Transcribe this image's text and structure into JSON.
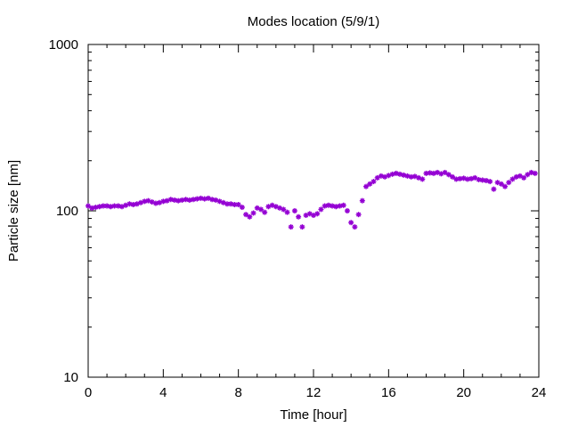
{
  "chart_data": {
    "type": "scatter",
    "title": "Modes location (5/9/1)",
    "xlabel": "Time [hour]",
    "ylabel": "Particle size [nm]",
    "xlim": [
      0,
      24
    ],
    "ylim": [
      10,
      1000
    ],
    "yscale": "log",
    "xticks": [
      0,
      4,
      8,
      12,
      16,
      20,
      24
    ],
    "yticks": [
      10,
      100,
      1000
    ],
    "ytick_labels": [
      "10",
      "100",
      "1000"
    ],
    "grid": false,
    "marker": "asterisk",
    "color": "#9400d3",
    "series": [
      {
        "x": [
          0.0,
          0.2,
          0.4,
          0.6,
          0.8,
          1.0,
          1.2,
          1.4,
          1.6,
          1.8,
          2.0,
          2.2,
          2.4,
          2.6,
          2.8,
          3.0,
          3.2,
          3.4,
          3.6,
          3.8,
          4.0,
          4.2,
          4.4,
          4.6,
          4.8,
          5.0,
          5.2,
          5.4,
          5.6,
          5.8,
          6.0,
          6.2,
          6.4,
          6.6,
          6.8,
          7.0,
          7.2,
          7.4,
          7.6,
          7.8,
          8.0,
          8.2,
          8.4,
          8.6,
          8.8,
          9.0,
          9.2,
          9.4,
          9.6,
          9.8,
          10.0,
          10.2,
          10.4,
          10.6,
          10.8,
          11.0,
          11.2,
          11.4,
          11.6,
          11.8,
          12.0,
          12.2,
          12.4,
          12.6,
          12.8,
          13.0,
          13.2,
          13.4,
          13.6,
          13.8,
          14.0,
          14.2,
          14.4,
          14.6,
          14.8,
          15.0,
          15.2,
          15.4,
          15.6,
          15.8,
          16.0,
          16.2,
          16.4,
          16.6,
          16.8,
          17.0,
          17.2,
          17.4,
          17.6,
          17.8,
          18.0,
          18.2,
          18.4,
          18.6,
          18.8,
          19.0,
          19.2,
          19.4,
          19.6,
          19.8,
          20.0,
          20.2,
          20.4,
          20.6,
          20.8,
          21.0,
          21.2,
          21.4,
          21.6,
          21.8,
          22.0,
          22.2,
          22.4,
          22.6,
          22.8,
          23.0,
          23.2,
          23.4,
          23.6,
          23.8
        ],
        "y": [
          107,
          104,
          105,
          106,
          107,
          107,
          106,
          107,
          107,
          106,
          108,
          110,
          109,
          110,
          112,
          114,
          115,
          113,
          111,
          112,
          114,
          115,
          117,
          116,
          115,
          116,
          117,
          116,
          117,
          118,
          119,
          118,
          119,
          117,
          116,
          114,
          112,
          110,
          110,
          109,
          109,
          105,
          95,
          92,
          97,
          104,
          102,
          98,
          106,
          108,
          106,
          104,
          102,
          98,
          80,
          100,
          92,
          80,
          94,
          96,
          94,
          96,
          102,
          107,
          108,
          107,
          106,
          107,
          108,
          100,
          85,
          80,
          95,
          115,
          140,
          145,
          150,
          158,
          162,
          160,
          163,
          166,
          168,
          166,
          164,
          162,
          160,
          161,
          158,
          155,
          168,
          169,
          168,
          170,
          167,
          170,
          165,
          160,
          155,
          156,
          157,
          155,
          156,
          158,
          154,
          153,
          152,
          150,
          135,
          148,
          145,
          140,
          148,
          155,
          160,
          162,
          158,
          165,
          170,
          168
        ]
      }
    ]
  }
}
